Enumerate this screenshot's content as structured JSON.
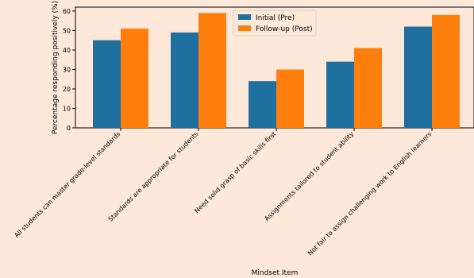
{
  "chart_data": {
    "type": "bar",
    "title": "",
    "xlabel": "Mindset Item",
    "ylabel": "Percentage responding positively (%)",
    "ylim": [
      0,
      62
    ],
    "yticks": [
      0,
      10,
      20,
      30,
      40,
      50,
      60
    ],
    "grid": false,
    "legend_position": "top-center",
    "categories": [
      "All students can master grade-level standards",
      "Standards are appropriate for students",
      "Need solid grasp of basic skills first",
      "Assignments tailored to student ability",
      "Not fair to assign challenging work to English learners"
    ],
    "series": [
      {
        "name": "Initial (Pre)",
        "color": "#1f6f9f",
        "values": [
          45,
          49,
          24,
          34,
          52
        ]
      },
      {
        "name": "Follow-up (Post)",
        "color": "#ff7f0e",
        "values": [
          51,
          59,
          30,
          41,
          58
        ]
      }
    ]
  }
}
